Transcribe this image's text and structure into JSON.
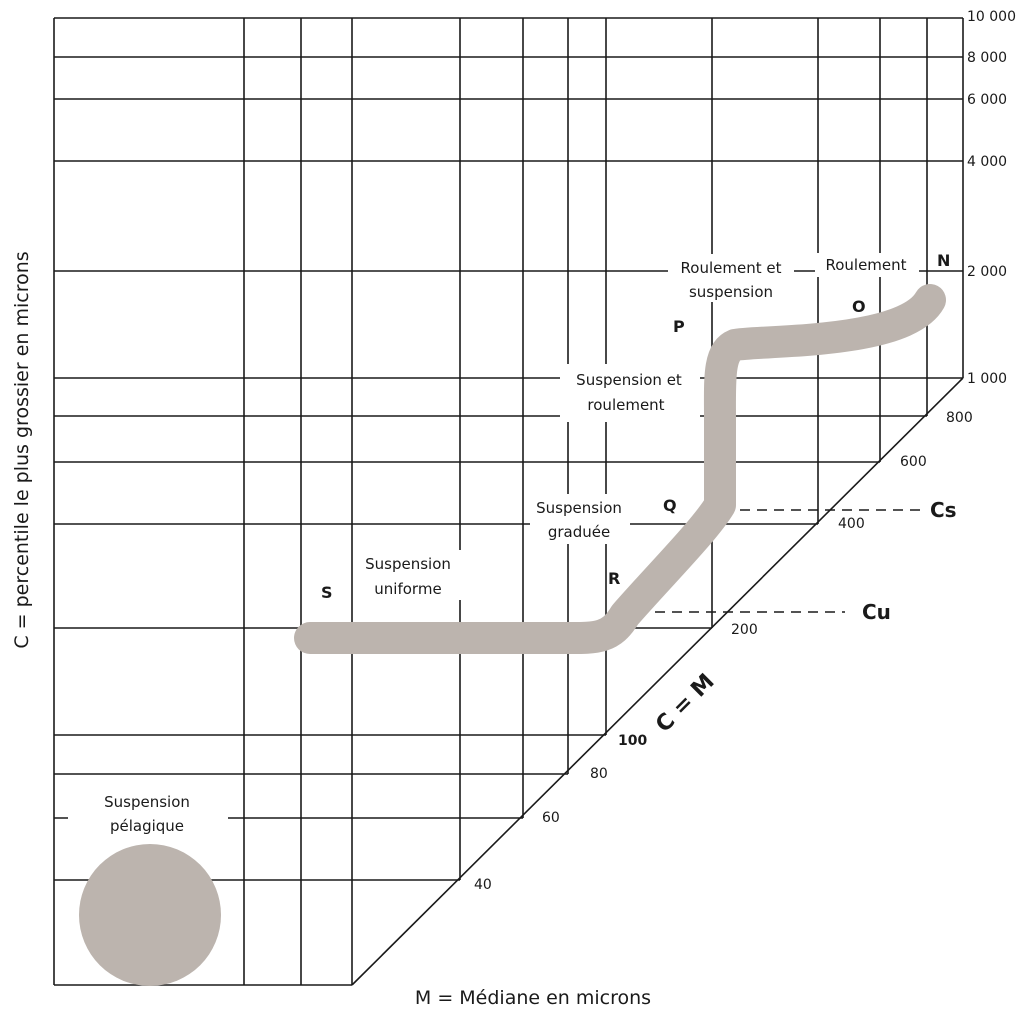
{
  "diagram": {
    "x_axis_title": "M = Médiane en microns",
    "y_axis_title": "C = percentile le plus grossier en microns",
    "diagonal_label": "C = M",
    "right_ticks": [
      "10 000",
      "8 000",
      "6 000",
      "4 000",
      "2 000",
      "1 000"
    ],
    "diagonal_ticks": [
      "800",
      "600",
      "400",
      "200",
      "100",
      "80",
      "60",
      "40"
    ],
    "points": {
      "N": "N",
      "O": "O",
      "P": "P",
      "Q": "Q",
      "R": "R",
      "S": "S"
    },
    "regions": {
      "roulement": "Roulement",
      "roul_susp_1": "Roulement et",
      "roul_susp_2": "suspension",
      "susp_roul_1": "Suspension et",
      "susp_roul_2": "roulement",
      "graduee_1": "Suspension",
      "graduee_2": "graduée",
      "uniforme_1": "Suspension",
      "uniforme_2": "uniforme",
      "pelagique_1": "Suspension",
      "pelagique_2": "pélagique"
    },
    "lines": {
      "cs": "Cs",
      "cu": "Cu"
    },
    "colors": {
      "band": "#bcb4ae",
      "lines": "#1a1a1a"
    }
  }
}
